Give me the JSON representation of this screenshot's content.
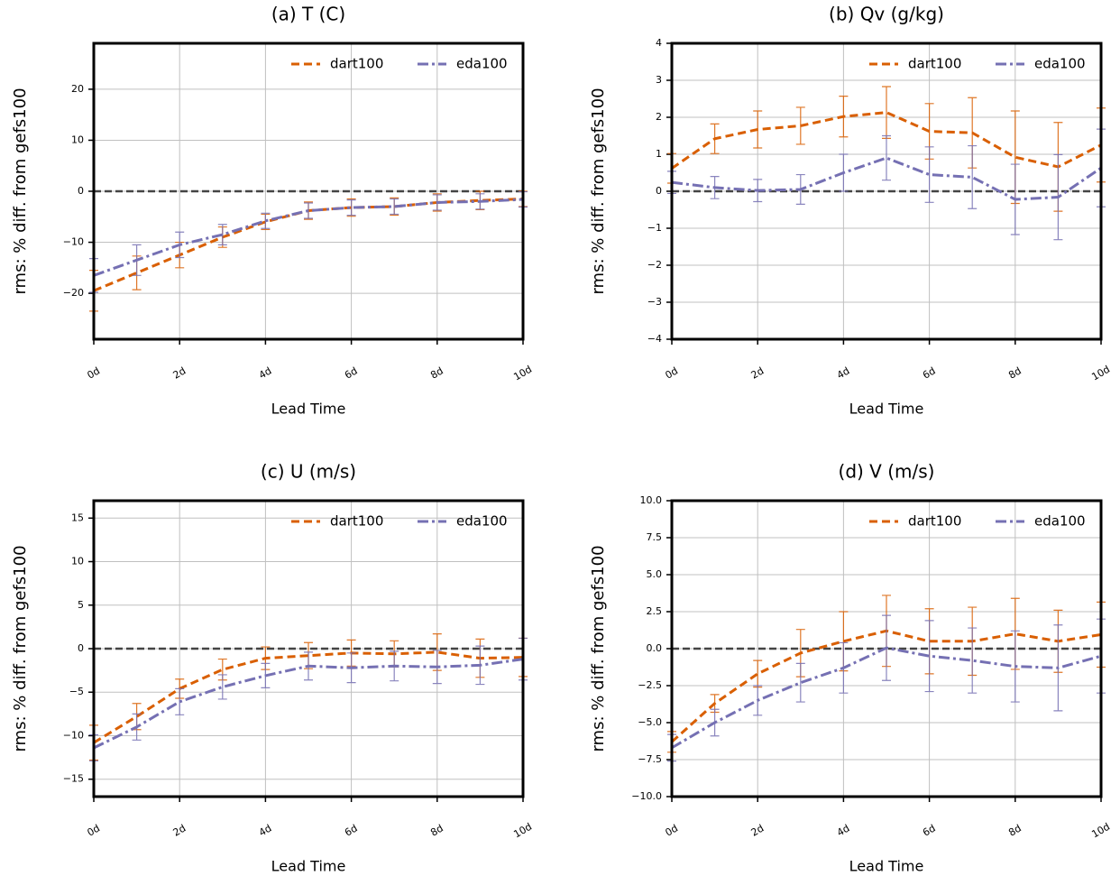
{
  "chart_data": [
    {
      "type": "line",
      "title": "(a) T (C)",
      "xlabel": "Lead Time",
      "ylabel": "rms: % diff. from gefs100",
      "x": [
        0,
        1,
        2,
        3,
        4,
        5,
        6,
        7,
        8,
        9,
        10
      ],
      "xlim": [
        0,
        10
      ],
      "xticks": [
        {
          "value": 0,
          "label": "0d"
        },
        {
          "value": 2,
          "label": "2d"
        },
        {
          "value": 4,
          "label": "4d"
        },
        {
          "value": 6,
          "label": "6d"
        },
        {
          "value": 8,
          "label": "8d"
        },
        {
          "value": 10,
          "label": "10d"
        }
      ],
      "ylim": [
        -29,
        29
      ],
      "yticks": [
        {
          "value": -20,
          "label": "−20"
        },
        {
          "value": -10,
          "label": "−10"
        },
        0,
        10,
        20
      ],
      "grid": true,
      "legend": "upper right",
      "hline": 0,
      "series": [
        {
          "name": "dart100",
          "color": "#d95f02",
          "linestyle": "dashed",
          "values": [
            -19.5,
            -16,
            -12.5,
            -9,
            -6,
            -3.8,
            -3.2,
            -3,
            -2.2,
            -1.8,
            -1.5
          ],
          "errors": [
            4,
            3.3,
            2.5,
            2,
            1.5,
            1.7,
            1.7,
            1.7,
            1.7,
            1.8,
            1.5
          ]
        },
        {
          "name": "eda100",
          "color": "#7570b3",
          "linestyle": "dashdot",
          "values": [
            -16.5,
            -13.5,
            -10.5,
            -8.5,
            -5.8,
            -3.8,
            -3.2,
            -3,
            -2.2,
            -2,
            -1.6
          ],
          "errors": [
            3.3,
            3,
            2.5,
            2,
            1.5,
            1.5,
            1.5,
            1.5,
            1.5,
            1.5,
            1.5
          ]
        }
      ]
    },
    {
      "type": "line",
      "title": "(b) Qv (g/kg)",
      "xlabel": "Lead Time",
      "ylabel": "rms: % diff. from gefs100",
      "x": [
        0,
        1,
        2,
        3,
        4,
        5,
        6,
        7,
        8,
        9,
        10
      ],
      "xlim": [
        0,
        10
      ],
      "xticks": [
        {
          "value": 0,
          "label": "0d"
        },
        {
          "value": 2,
          "label": "2d"
        },
        {
          "value": 4,
          "label": "4d"
        },
        {
          "value": 6,
          "label": "6d"
        },
        {
          "value": 8,
          "label": "8d"
        },
        {
          "value": 10,
          "label": "10d"
        }
      ],
      "ylim": [
        -4,
        4
      ],
      "yticks": [
        {
          "value": -4,
          "label": "−4"
        },
        {
          "value": -3,
          "label": "−3"
        },
        {
          "value": -2,
          "label": "−2"
        },
        {
          "value": -1,
          "label": "−1"
        },
        0,
        1,
        2,
        3,
        4
      ],
      "grid": true,
      "legend": "upper right",
      "hline": 0,
      "series": [
        {
          "name": "dart100",
          "color": "#d95f02",
          "linestyle": "dashed",
          "values": [
            0.62,
            1.42,
            1.67,
            1.77,
            2.02,
            2.13,
            1.62,
            1.58,
            0.92,
            0.66,
            1.25
          ],
          "errors": [
            0.4,
            0.4,
            0.5,
            0.5,
            0.55,
            0.7,
            0.75,
            0.95,
            1.25,
            1.2,
            1.0
          ]
        },
        {
          "name": "eda100",
          "color": "#7570b3",
          "linestyle": "dashdot",
          "values": [
            0.24,
            0.1,
            0.02,
            0.05,
            0.5,
            0.9,
            0.45,
            0.38,
            -0.22,
            -0.16,
            0.63
          ],
          "errors": [
            0.3,
            0.3,
            0.3,
            0.4,
            0.5,
            0.6,
            0.75,
            0.85,
            0.95,
            1.15,
            1.05
          ]
        }
      ]
    },
    {
      "type": "line",
      "title": "(c) U (m/s)",
      "xlabel": "Lead Time",
      "ylabel": "rms: % diff. from gefs100",
      "x": [
        0,
        1,
        2,
        3,
        4,
        5,
        6,
        7,
        8,
        9,
        10
      ],
      "xlim": [
        0,
        10
      ],
      "xticks": [
        {
          "value": 0,
          "label": "0d"
        },
        {
          "value": 2,
          "label": "2d"
        },
        {
          "value": 4,
          "label": "4d"
        },
        {
          "value": 6,
          "label": "6d"
        },
        {
          "value": 8,
          "label": "8d"
        },
        {
          "value": 10,
          "label": "10d"
        }
      ],
      "ylim": [
        -17,
        17
      ],
      "yticks": [
        {
          "value": -15,
          "label": "−15"
        },
        {
          "value": -10,
          "label": "−10"
        },
        {
          "value": -5,
          "label": "−5"
        },
        0,
        5,
        10,
        15
      ],
      "grid": true,
      "legend": "upper right",
      "hline": 0,
      "series": [
        {
          "name": "dart100",
          "color": "#d95f02",
          "linestyle": "dashed",
          "values": [
            -10.8,
            -7.8,
            -4.6,
            -2.4,
            -1.1,
            -0.8,
            -0.5,
            -0.6,
            -0.4,
            -1.1,
            -1.0
          ],
          "errors": [
            2,
            1.5,
            1.1,
            1.2,
            1.3,
            1.5,
            1.5,
            1.5,
            2.1,
            2.2,
            2.2
          ]
        },
        {
          "name": "eda100",
          "color": "#7570b3",
          "linestyle": "dashdot",
          "values": [
            -11.4,
            -9.0,
            -6.1,
            -4.4,
            -3.1,
            -2.0,
            -2.2,
            -2.0,
            -2.1,
            -1.9,
            -1.2
          ],
          "errors": [
            1.5,
            1.5,
            1.5,
            1.4,
            1.4,
            1.6,
            1.7,
            1.7,
            1.9,
            2.2,
            2.4
          ]
        }
      ]
    },
    {
      "type": "line",
      "title": "(d) V (m/s)",
      "xlabel": "Lead Time",
      "ylabel": "rms: % diff. from gefs100",
      "x": [
        0,
        1,
        2,
        3,
        4,
        5,
        6,
        7,
        8,
        9,
        10
      ],
      "xlim": [
        0,
        10
      ],
      "xticks": [
        {
          "value": 0,
          "label": "0d"
        },
        {
          "value": 2,
          "label": "2d"
        },
        {
          "value": 4,
          "label": "4d"
        },
        {
          "value": 6,
          "label": "6d"
        },
        {
          "value": 8,
          "label": "8d"
        },
        {
          "value": 10,
          "label": "10d"
        }
      ],
      "ylim": [
        -10,
        10
      ],
      "yticks": [
        {
          "value": -10,
          "label": "−10.0"
        },
        {
          "value": -7.5,
          "label": "−7.5"
        },
        {
          "value": -5,
          "label": "−5.0"
        },
        {
          "value": -2.5,
          "label": "−2.5"
        },
        {
          "value": 0,
          "label": "0.0"
        },
        2.5,
        {
          "value": 5,
          "label": "5.0"
        },
        7.5,
        {
          "value": 10,
          "label": "10.0"
        }
      ],
      "grid": true,
      "legend": "upper right",
      "hline": 0,
      "series": [
        {
          "name": "dart100",
          "color": "#d95f02",
          "linestyle": "dashed",
          "values": [
            -6.3,
            -3.7,
            -1.7,
            -0.3,
            0.5,
            1.2,
            0.5,
            0.5,
            1.0,
            0.5,
            0.95
          ],
          "errors": [
            0.7,
            0.6,
            0.9,
            1.6,
            2.0,
            2.4,
            2.2,
            2.3,
            2.4,
            2.1,
            2.2
          ]
        },
        {
          "name": "eda100",
          "color": "#7570b3",
          "linestyle": "dashdot",
          "values": [
            -6.7,
            -5.0,
            -3.5,
            -2.3,
            -1.3,
            0.05,
            -0.5,
            -0.8,
            -1.2,
            -1.3,
            -0.5
          ],
          "errors": [
            0.9,
            0.9,
            1.0,
            1.3,
            1.7,
            2.2,
            2.4,
            2.2,
            2.4,
            2.9,
            2.5
          ]
        }
      ]
    }
  ]
}
